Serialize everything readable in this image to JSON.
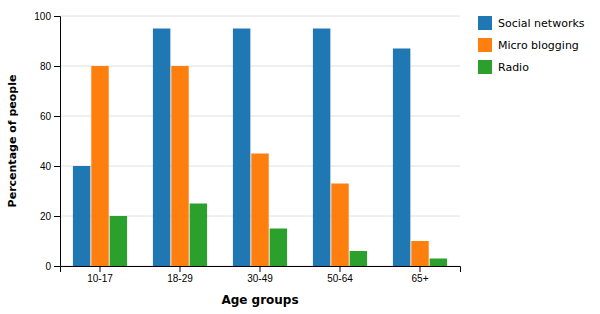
{
  "chart_data": {
    "type": "bar",
    "x_label": "Age groups",
    "y_label": "Percentage of people",
    "categories": [
      "10-17",
      "18-29",
      "30-49",
      "50-64",
      "65+"
    ],
    "series": [
      {
        "name": "Social networks",
        "values": [
          40,
          95,
          95,
          95,
          87
        ]
      },
      {
        "name": "Micro blogging",
        "values": [
          80,
          80,
          45,
          33,
          10
        ]
      },
      {
        "name": "Radio",
        "values": [
          20,
          25,
          15,
          6,
          3
        ]
      }
    ],
    "ylim": [
      0,
      100
    ],
    "yticks": [
      0,
      20,
      40,
      60,
      80,
      100
    ],
    "grid": true,
    "legend": "right"
  }
}
